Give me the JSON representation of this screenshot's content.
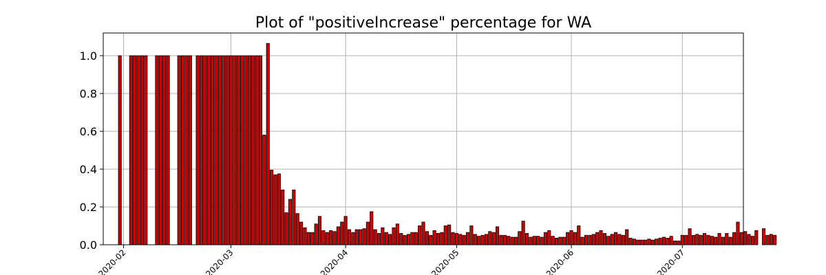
{
  "chart_data": {
    "type": "bar",
    "title": "Plot of \"positiveIncrease\" percentage for WA",
    "xlabel": "",
    "ylabel": "",
    "x_start_date": "2020-01-29",
    "x_end_date": "2020-07-15",
    "x_ticks": [
      "2020-02",
      "2020-03",
      "2020-04",
      "2020-05",
      "2020-06",
      "2020-07"
    ],
    "y_ticks": [
      "0.0",
      "0.2",
      "0.4",
      "0.6",
      "0.8",
      "1.0"
    ],
    "ylim": [
      0,
      1.12
    ],
    "grid": true,
    "legend": "none",
    "bar_color": "#cc0000",
    "edge_color": "#000000",
    "values": [
      0,
      0,
      1.0,
      0,
      0,
      1.0,
      1.0,
      1.0,
      1.0,
      1.0,
      0,
      0,
      1.0,
      1.0,
      1.0,
      1.0,
      0,
      0,
      1.0,
      1.0,
      1.0,
      1.0,
      0,
      1.0,
      1.0,
      1.0,
      1.0,
      1.0,
      1.0,
      1.0,
      1.0,
      1.0,
      1.0,
      1.0,
      1.0,
      1.0,
      1.0,
      1.0,
      1.0,
      1.0,
      1.0,
      0.58,
      1.065,
      0.395,
      0.37,
      0.375,
      0.29,
      0.17,
      0.24,
      0.29,
      0.165,
      0.12,
      0.09,
      0.065,
      0.065,
      0.11,
      0.15,
      0.075,
      0.065,
      0.075,
      0.07,
      0.095,
      0.12,
      0.15,
      0.08,
      0.065,
      0.08,
      0.08,
      0.085,
      0.12,
      0.175,
      0.08,
      0.06,
      0.09,
      0.065,
      0.055,
      0.09,
      0.11,
      0.06,
      0.05,
      0.055,
      0.065,
      0.065,
      0.1,
      0.12,
      0.07,
      0.05,
      0.075,
      0.06,
      0.065,
      0.1,
      0.105,
      0.065,
      0.06,
      0.055,
      0.05,
      0.065,
      0.1,
      0.055,
      0.045,
      0.05,
      0.055,
      0.07,
      0.065,
      0.095,
      0.05,
      0.05,
      0.045,
      0.04,
      0.04,
      0.07,
      0.125,
      0.06,
      0.04,
      0.045,
      0.045,
      0.04,
      0.065,
      0.075,
      0.045,
      0.035,
      0.04,
      0.04,
      0.065,
      0.075,
      0.065,
      0.1,
      0.04,
      0.05,
      0.05,
      0.055,
      0.065,
      0.075,
      0.06,
      0.045,
      0.055,
      0.065,
      0.055,
      0.05,
      0.08,
      0.035,
      0.03,
      0.025,
      0.025,
      0.025,
      0.03,
      0.025,
      0.03,
      0.035,
      0.04,
      0.035,
      0.045,
      0.02,
      0.02,
      0.05,
      0.05,
      0.085,
      0.05,
      0.055,
      0.05,
      0.06,
      0.05,
      0.045,
      0.04,
      0.06,
      0.04,
      0.06,
      0.04,
      0.065,
      0.12,
      0.065,
      0.07,
      0.055,
      0.045,
      0.075,
      0,
      0.085,
      0.05,
      0.055,
      0.05
    ]
  }
}
